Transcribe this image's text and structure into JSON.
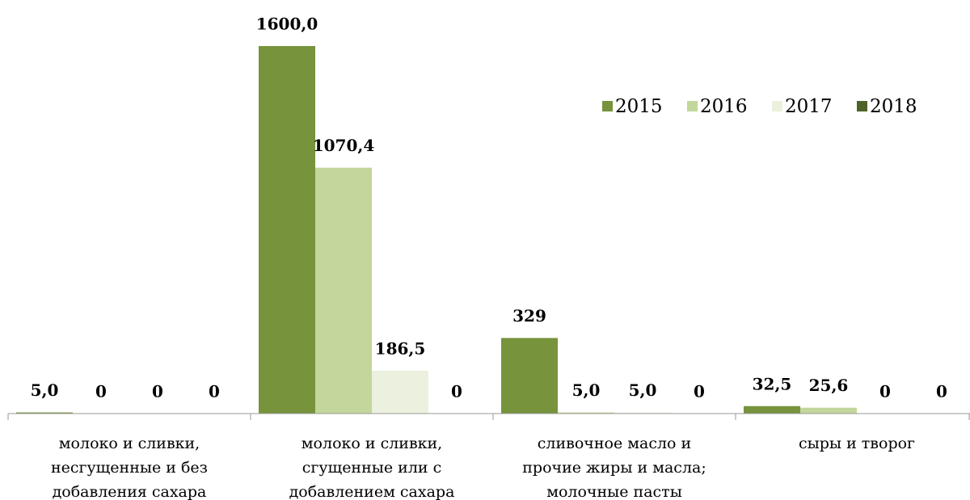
{
  "chart_data": {
    "type": "bar",
    "categories": [
      "молоко и сливки,\nнесгущенные и без\nдобавления сахара",
      "молоко и сливки,\nсгущенные или с\nдобавлением сахара",
      "сливочное масло и\nпрочие жиры и масла;\nмолочные пасты",
      "сыры и творог"
    ],
    "series": [
      {
        "name": "2015",
        "color": "#77933c",
        "values": [
          5.0,
          1600.0,
          329,
          32.5
        ],
        "value_labels": [
          "5,0",
          "1600,0",
          "329",
          "32,5"
        ]
      },
      {
        "name": "2016",
        "color": "#c3d69b",
        "values": [
          0,
          1070.4,
          5.0,
          25.6
        ],
        "value_labels": [
          "0",
          "1070,4",
          "5,0",
          "25,6"
        ]
      },
      {
        "name": "2017",
        "color": "#ebf1de",
        "values": [
          0,
          186.5,
          5.0,
          0
        ],
        "value_labels": [
          "0",
          "186,5",
          "5,0",
          "0"
        ]
      },
      {
        "name": "2018",
        "color": "#4f6228",
        "values": [
          0,
          0,
          0,
          0
        ],
        "value_labels": [
          "0",
          "0",
          "0",
          "0"
        ]
      }
    ],
    "ylim": [
      0,
      1600
    ],
    "legend": "top-right"
  }
}
